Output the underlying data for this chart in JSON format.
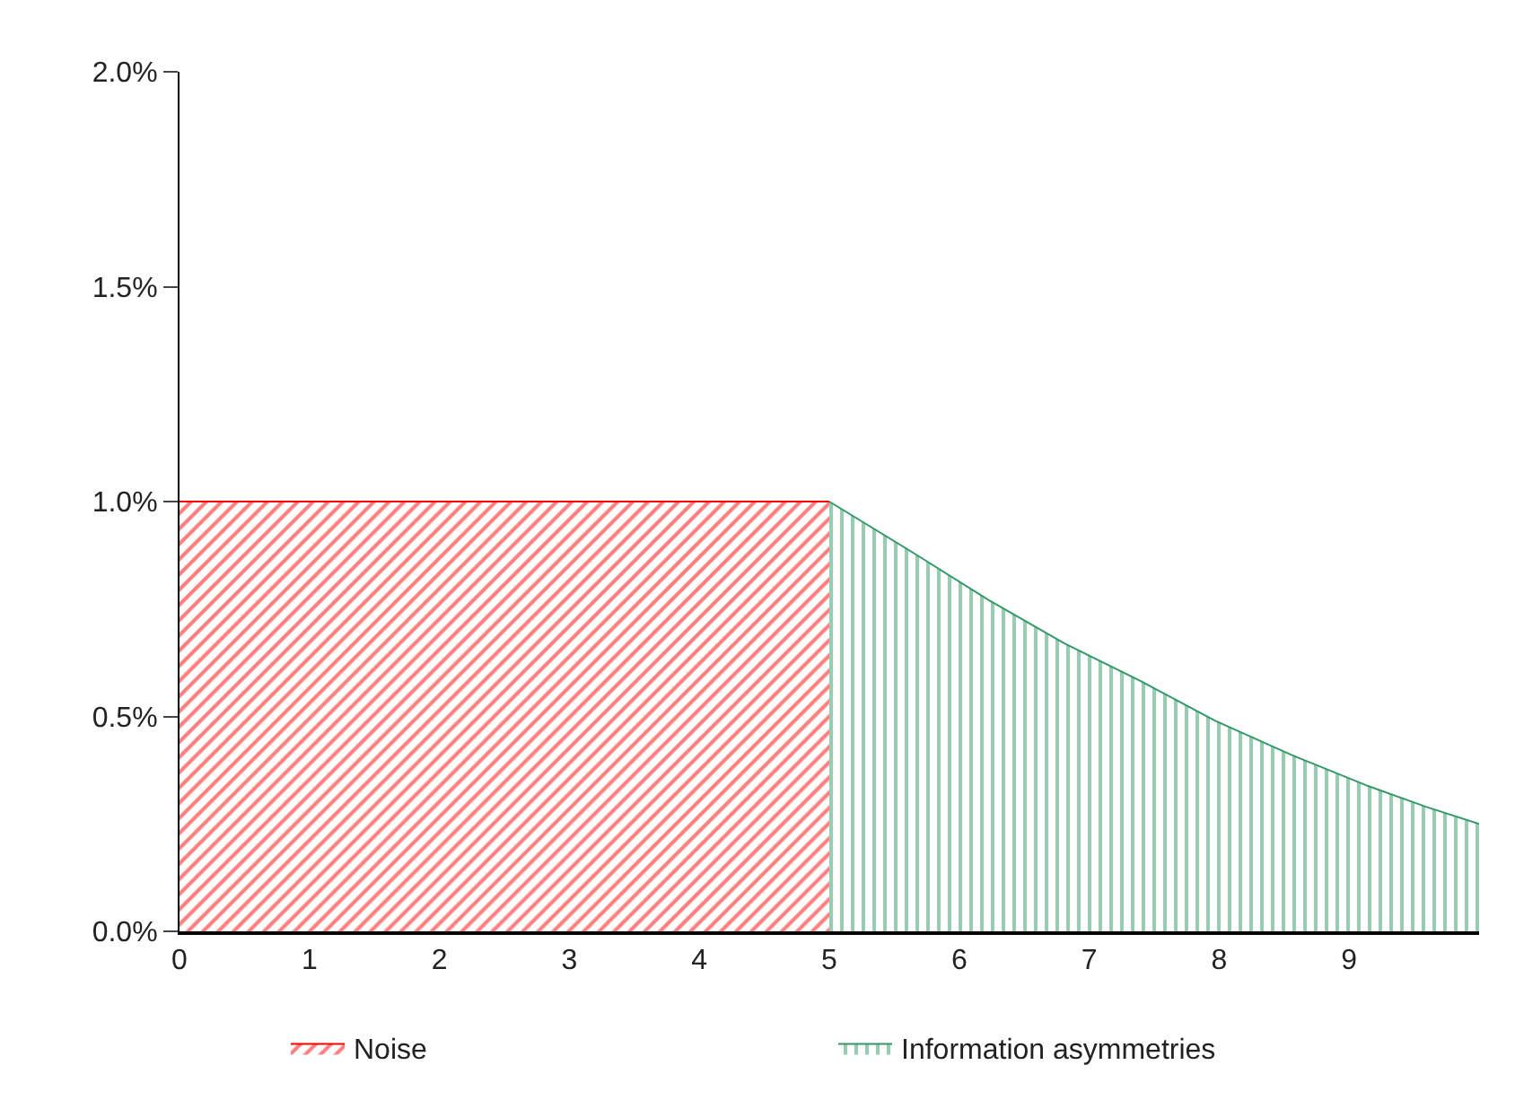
{
  "chart_data": {
    "type": "area",
    "series": [
      {
        "name": "Noise",
        "color": "#ff0000",
        "x": [
          0,
          5
        ],
        "values": [
          1.0,
          1.0
        ]
      },
      {
        "name": "Information asymmetries",
        "color": "#339966",
        "x": [
          5,
          5.65,
          6.23,
          6.81,
          7.41,
          7.97,
          8.56,
          9.13,
          9.59,
          10
        ],
        "values": [
          1.0,
          0.88,
          0.77,
          0.67,
          0.58,
          0.49,
          0.41,
          0.34,
          0.29,
          0.25
        ]
      }
    ],
    "xlim": [
      0,
      10
    ],
    "xticks": [
      0,
      1,
      2,
      3,
      4,
      5,
      6,
      7,
      8,
      9
    ],
    "ylim": [
      0,
      2
    ],
    "yticks": [
      {
        "value": 0,
        "label": "0.0%"
      },
      {
        "value": 0.5,
        "label": "0.5%"
      },
      {
        "value": 1,
        "label": "1.0%"
      },
      {
        "value": 1.5,
        "label": "1.5%"
      },
      {
        "value": 2,
        "label": "2.0%"
      }
    ],
    "legend": "bottom"
  }
}
